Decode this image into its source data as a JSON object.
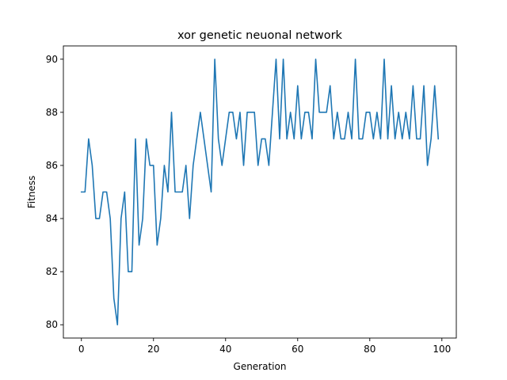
{
  "chart_data": {
    "type": "line",
    "title": "xor genetic neuonal network",
    "xlabel": "Generation",
    "ylabel": "Fitness",
    "xlim": [
      -5,
      104
    ],
    "ylim": [
      79.5,
      90.5
    ],
    "xticks": [
      0,
      20,
      40,
      60,
      80,
      100
    ],
    "yticks": [
      80,
      82,
      84,
      86,
      88,
      90
    ],
    "xtick_labels": [
      "0",
      "20",
      "40",
      "60",
      "80",
      "100"
    ],
    "ytick_labels": [
      "80",
      "82",
      "84",
      "86",
      "88",
      "90"
    ],
    "grid": false,
    "legend": "none",
    "series": [
      {
        "color": "#1f77b4",
        "x": [
          0,
          1,
          2,
          3,
          4,
          5,
          6,
          7,
          8,
          9,
          10,
          11,
          12,
          13,
          14,
          15,
          16,
          17,
          18,
          19,
          20,
          21,
          22,
          23,
          24,
          25,
          26,
          27,
          28,
          29,
          30,
          31,
          32,
          33,
          34,
          35,
          36,
          37,
          38,
          39,
          40,
          41,
          42,
          43,
          44,
          45,
          46,
          47,
          48,
          49,
          50,
          51,
          52,
          53,
          54,
          55,
          56,
          57,
          58,
          59,
          60,
          61,
          62,
          63,
          64,
          65,
          66,
          67,
          68,
          69,
          70,
          71,
          72,
          73,
          74,
          75,
          76,
          77,
          78,
          79,
          80,
          81,
          82,
          83,
          84,
          85,
          86,
          87,
          88,
          89,
          90,
          91,
          92,
          93,
          94,
          95,
          96,
          97,
          98,
          99
        ],
        "values": [
          85,
          85,
          87,
          86,
          84,
          84,
          85,
          85,
          84,
          81,
          80,
          84,
          85,
          82,
          82,
          87,
          83,
          84,
          87,
          86,
          86,
          83,
          84,
          86,
          85,
          88,
          85,
          85,
          85,
          86,
          84,
          86,
          87,
          88,
          87,
          86,
          85,
          90,
          87,
          86,
          87,
          88,
          88,
          87,
          88,
          86,
          88,
          88,
          88,
          86,
          87,
          87,
          86,
          88,
          90,
          87,
          90,
          87,
          88,
          87,
          89,
          87,
          88,
          88,
          87,
          90,
          88,
          88,
          88,
          89,
          87,
          88,
          87,
          87,
          88,
          87,
          90,
          87,
          87,
          88,
          88,
          87,
          88,
          87,
          90,
          87,
          89,
          87,
          88,
          87,
          88,
          87,
          89,
          87,
          87,
          89,
          86,
          87,
          89,
          87
        ]
      }
    ]
  }
}
